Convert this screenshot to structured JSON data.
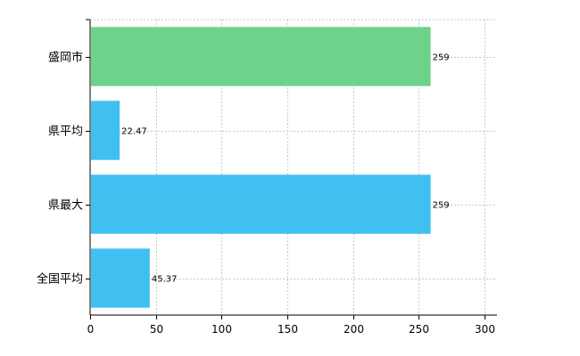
{
  "chart_data": {
    "type": "bar",
    "orientation": "horizontal",
    "categories": [
      "盛岡市",
      "県平均",
      "県最大",
      "全国平均"
    ],
    "values": [
      259,
      22.47,
      259,
      45.37
    ],
    "data_labels": [
      "259",
      "22.47",
      "259",
      "45.37"
    ],
    "bar_colors": [
      "#6dd38b",
      "#3fc0f1",
      "#3fc0f1",
      "#3fc0f1"
    ],
    "xlim": [
      0,
      300
    ],
    "xticks": [
      0,
      50,
      100,
      150,
      200,
      250,
      300
    ],
    "xtick_labels": [
      "0",
      "50",
      "100",
      "150",
      "200",
      "250",
      "300"
    ],
    "grid": true,
    "grid_style": "dashed",
    "legend": "none"
  }
}
